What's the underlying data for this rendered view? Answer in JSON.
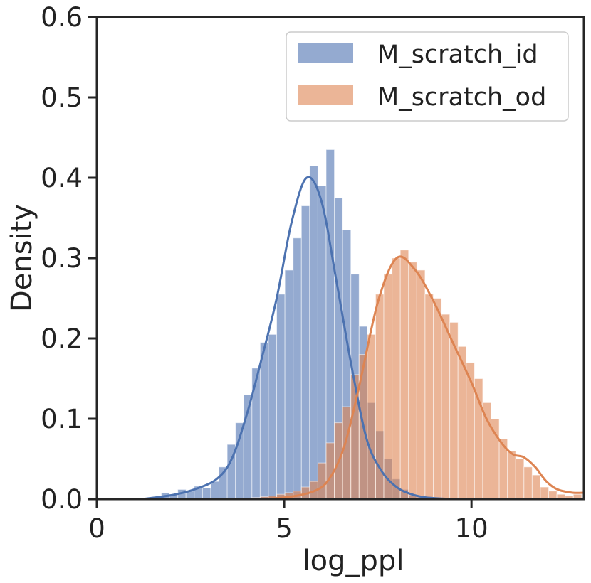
{
  "chart_data": {
    "type": "histogram",
    "title": "",
    "xlabel": "log_ppl",
    "ylabel": "Density",
    "xlim": [
      0,
      13
    ],
    "ylim": [
      0,
      0.6
    ],
    "xticks": [
      0,
      5,
      10
    ],
    "xtick_labels": [
      "0",
      "5",
      "10"
    ],
    "yticks": [
      0.0,
      0.1,
      0.2,
      0.3,
      0.4,
      0.5,
      0.6
    ],
    "ytick_labels": [
      "0.0",
      "0.1",
      "0.2",
      "0.3",
      "0.4",
      "0.5",
      "0.6"
    ],
    "bin_width": 0.22,
    "legend_position": "top-right",
    "series": [
      {
        "name": "M_scratch_id",
        "color": "#4c72b0",
        "bins_start": [
          1.72,
          1.94,
          2.16,
          2.38,
          2.6,
          2.82,
          3.04,
          3.26,
          3.48,
          3.7,
          3.92,
          4.14,
          4.36,
          4.58,
          4.8,
          5.02,
          5.24,
          5.46,
          5.68,
          5.9,
          6.12,
          6.34,
          6.56,
          6.78,
          7.0,
          7.22,
          7.44,
          7.66,
          7.88,
          8.1,
          8.32,
          8.54
        ],
        "density": [
          0.008,
          0.006,
          0.012,
          0.01,
          0.016,
          0.014,
          0.022,
          0.04,
          0.068,
          0.095,
          0.13,
          0.163,
          0.195,
          0.205,
          0.255,
          0.285,
          0.325,
          0.365,
          0.415,
          0.39,
          0.435,
          0.375,
          0.335,
          0.28,
          0.215,
          0.12,
          0.085,
          0.05,
          0.025,
          0.012,
          0.004,
          0.002
        ],
        "kde_x": [
          1.2,
          2.0,
          2.6,
          3.2,
          3.6,
          4.0,
          4.4,
          4.8,
          5.2,
          5.6,
          6.0,
          6.4,
          6.8,
          7.2,
          7.6,
          8.0,
          8.4,
          8.8,
          9.5
        ],
        "kde_y": [
          0.0,
          0.005,
          0.012,
          0.025,
          0.05,
          0.105,
          0.175,
          0.25,
          0.345,
          0.4,
          0.37,
          0.27,
          0.165,
          0.075,
          0.035,
          0.015,
          0.006,
          0.002,
          0.0
        ]
      },
      {
        "name": "M_scratch_od",
        "color": "#dd8452",
        "bins_start": [
          4.14,
          4.36,
          4.58,
          4.8,
          5.02,
          5.24,
          5.46,
          5.68,
          5.9,
          6.12,
          6.34,
          6.56,
          6.78,
          7.0,
          7.22,
          7.44,
          7.66,
          7.88,
          8.1,
          8.32,
          8.54,
          8.76,
          8.98,
          9.2,
          9.42,
          9.64,
          9.86,
          10.08,
          10.3,
          10.52,
          10.74,
          10.96,
          11.18,
          11.4,
          11.62,
          11.84,
          12.06,
          12.28,
          12.5,
          12.72
        ],
        "density": [
          0.002,
          0.003,
          0.004,
          0.006,
          0.008,
          0.01,
          0.015,
          0.022,
          0.045,
          0.07,
          0.095,
          0.115,
          0.155,
          0.18,
          0.205,
          0.255,
          0.28,
          0.3,
          0.31,
          0.295,
          0.285,
          0.255,
          0.25,
          0.23,
          0.22,
          0.19,
          0.17,
          0.15,
          0.12,
          0.1,
          0.075,
          0.06,
          0.05,
          0.04,
          0.03,
          0.015,
          0.01,
          0.006,
          0.004,
          0.006
        ],
        "kde_x": [
          4.0,
          5.0,
          5.8,
          6.2,
          6.6,
          7.0,
          7.5,
          8.0,
          8.5,
          9.0,
          9.5,
          10.0,
          10.4,
          10.8,
          11.1,
          11.4,
          11.7,
          12.0,
          12.3,
          12.7,
          13.0
        ],
        "kde_y": [
          0.0,
          0.002,
          0.01,
          0.025,
          0.065,
          0.14,
          0.245,
          0.3,
          0.285,
          0.245,
          0.195,
          0.145,
          0.1,
          0.07,
          0.056,
          0.052,
          0.04,
          0.022,
          0.012,
          0.008,
          0.008
        ]
      }
    ]
  }
}
